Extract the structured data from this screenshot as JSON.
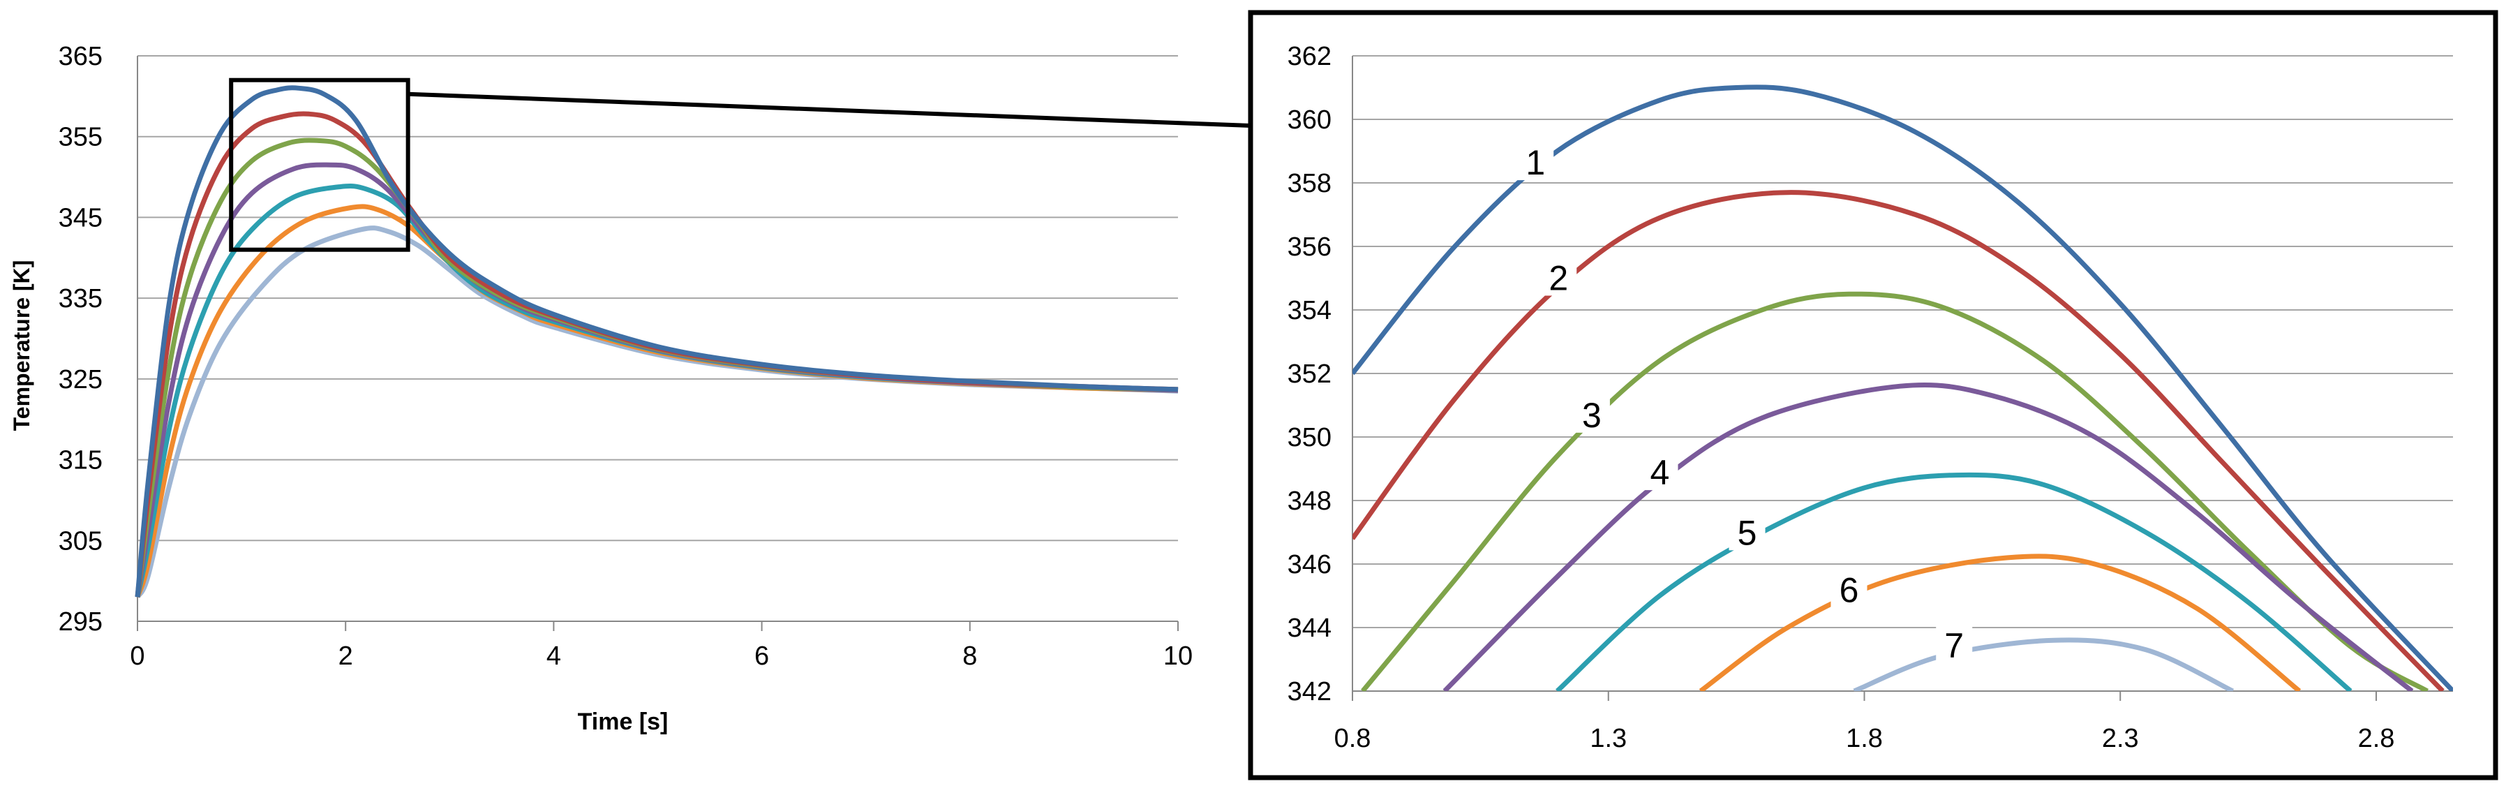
{
  "colors": [
    "#3f6fa5",
    "#b8433f",
    "#7fa44a",
    "#7a5a9a",
    "#2c9fb0",
    "#f08a2e",
    "#9fb6d4"
  ],
  "chart_data": [
    {
      "type": "line",
      "title": "",
      "xlabel": "Time [s]",
      "ylabel": "Temperature [K]",
      "xlim": [
        0,
        10
      ],
      "ylim": [
        295,
        365
      ],
      "xticks": [
        0,
        2,
        4,
        6,
        8,
        10
      ],
      "yticks": [
        295,
        305,
        315,
        325,
        335,
        345,
        355,
        365
      ],
      "grid": "horizontal",
      "legend": "none",
      "zoom_box": {
        "x": [
          0.9,
          2.6
        ],
        "y": [
          341,
          362
        ]
      },
      "series": [
        {
          "x": [
            0,
            0.1,
            0.3,
            0.5,
            0.8,
            1.1,
            1.35,
            1.55,
            1.8,
            2.1,
            2.5,
            3,
            3.5,
            4,
            5,
            6,
            7,
            8,
            9,
            10
          ],
          "y": [
            298,
            312,
            334,
            346,
            355.5,
            359.6,
            360.8,
            361,
            360.2,
            357,
            348,
            340.5,
            336,
            333,
            329,
            326.8,
            325.5,
            324.7,
            324.1,
            323.7
          ]
        },
        {
          "x": [
            0,
            0.1,
            0.3,
            0.5,
            0.8,
            1.1,
            1.4,
            1.65,
            1.9,
            2.2,
            2.6,
            3,
            3.5,
            4,
            5,
            6,
            7,
            8,
            9,
            10
          ],
          "y": [
            298,
            310,
            330,
            342,
            351.5,
            356,
            357.5,
            357.8,
            357,
            354,
            346.5,
            340,
            335.5,
            332.8,
            328.8,
            326.7,
            325.4,
            324.6,
            324.1,
            323.7
          ]
        },
        {
          "x": [
            0,
            0.1,
            0.3,
            0.5,
            0.8,
            1.1,
            1.45,
            1.75,
            2,
            2.3,
            2.7,
            3,
            3.5,
            4,
            5,
            6,
            7,
            8,
            9,
            10
          ],
          "y": [
            298,
            308,
            326,
            337.5,
            347,
            352,
            354.2,
            354.5,
            353.8,
            351,
            344.5,
            339.5,
            335.2,
            332.6,
            328.7,
            326.6,
            325.4,
            324.6,
            324,
            323.7
          ]
        },
        {
          "x": [
            0,
            0.1,
            0.3,
            0.5,
            0.8,
            1.1,
            1.5,
            1.85,
            2.1,
            2.4,
            2.8,
            3.2,
            3.6,
            4,
            5,
            6,
            7,
            8,
            9,
            10
          ],
          "y": [
            298,
            306,
            322,
            333,
            342.5,
            348,
            351,
            351.5,
            351,
            348.5,
            342.5,
            337.5,
            334.4,
            332.4,
            328.6,
            326.5,
            325.3,
            324.5,
            324,
            323.6
          ]
        },
        {
          "x": [
            0,
            0.1,
            0.3,
            0.5,
            0.8,
            1.1,
            1.5,
            1.95,
            2.2,
            2.5,
            2.8,
            3.2,
            3.6,
            4,
            5,
            6,
            7,
            8,
            9,
            10
          ],
          "y": [
            298,
            304,
            318.5,
            328.5,
            338,
            343.5,
            347.5,
            348.8,
            348.5,
            346.5,
            342,
            337,
            334,
            332.1,
            328.5,
            326.4,
            325.2,
            324.5,
            324,
            323.6
          ]
        },
        {
          "x": [
            0,
            0.1,
            0.3,
            0.5,
            0.8,
            1.2,
            1.6,
            2.05,
            2.3,
            2.6,
            2.9,
            3.3,
            3.7,
            4,
            5,
            6,
            7,
            8,
            9,
            10
          ],
          "y": [
            298,
            302,
            315,
            324.5,
            333.5,
            340.5,
            344.5,
            346.2,
            346,
            344,
            340.5,
            336,
            333.3,
            331.8,
            328.3,
            326.3,
            325.1,
            324.4,
            323.9,
            323.6
          ]
        },
        {
          "x": [
            0,
            0.1,
            0.3,
            0.5,
            0.8,
            1.2,
            1.6,
            2.15,
            2.4,
            2.7,
            3,
            3.3,
            3.7,
            4,
            5,
            6,
            7,
            8,
            9,
            10
          ],
          "y": [
            298,
            300.5,
            311.5,
            320.5,
            329.5,
            336.5,
            341,
            343.5,
            343.3,
            341.5,
            338.5,
            335.5,
            332.8,
            331.4,
            328,
            326.1,
            325,
            324.3,
            323.9,
            323.5
          ]
        }
      ]
    },
    {
      "type": "line",
      "title": "",
      "xlim": [
        0.8,
        2.95
      ],
      "ylim": [
        342,
        362
      ],
      "xticks": [
        "0.8",
        "1.3",
        "1.8",
        "2.3",
        "2.8"
      ],
      "yticks": [
        342,
        344,
        346,
        348,
        350,
        352,
        354,
        356,
        358,
        360,
        362
      ],
      "grid": "horizontal",
      "legend": "none",
      "series": [
        {
          "name": "1",
          "peak_x": 1.55,
          "peak_y": 361.0,
          "x": [
            0.8,
            1.0,
            1.2,
            1.4,
            1.55,
            1.7,
            1.9,
            2.1,
            2.3,
            2.5,
            2.7,
            2.95
          ],
          "y": [
            352.0,
            356.0,
            359.0,
            360.6,
            361.0,
            360.8,
            359.6,
            357.4,
            354.2,
            350.3,
            346.3,
            342.0
          ]
        },
        {
          "name": "2",
          "peak_x": 1.65,
          "peak_y": 357.7,
          "x": [
            0.8,
            1.0,
            1.2,
            1.4,
            1.65,
            1.9,
            2.1,
            2.3,
            2.5,
            2.7,
            2.93
          ],
          "y": [
            346.8,
            351.2,
            354.7,
            356.9,
            357.7,
            357.0,
            355.3,
            352.6,
            349.2,
            345.8,
            342.0
          ]
        },
        {
          "name": "3",
          "peak_x": 1.77,
          "peak_y": 354.5,
          "x": [
            0.82,
            1.0,
            1.2,
            1.4,
            1.6,
            1.77,
            1.95,
            2.15,
            2.35,
            2.55,
            2.75,
            2.9
          ],
          "y": [
            342.0,
            345.5,
            349.4,
            352.4,
            354.0,
            354.5,
            354.1,
            352.4,
            349.6,
            346.4,
            343.4,
            342.0
          ]
        },
        {
          "name": "4",
          "peak_x": 1.87,
          "peak_y": 351.6,
          "x": [
            0.98,
            1.2,
            1.4,
            1.6,
            1.87,
            2.05,
            2.25,
            2.45,
            2.65,
            2.87
          ],
          "y": [
            342.0,
            345.6,
            348.6,
            350.6,
            351.6,
            351.3,
            350.0,
            347.6,
            344.8,
            342.0
          ]
        },
        {
          "name": "5",
          "peak_x": 1.98,
          "peak_y": 348.8,
          "x": [
            1.2,
            1.4,
            1.6,
            1.8,
            1.98,
            2.15,
            2.35,
            2.55,
            2.75
          ],
          "y": [
            342.0,
            345.0,
            347.0,
            348.4,
            348.8,
            348.5,
            347.0,
            344.8,
            342.0
          ]
        },
        {
          "name": "6",
          "peak_x": 2.08,
          "peak_y": 346.2,
          "x": [
            1.48,
            1.65,
            1.85,
            2.08,
            2.25,
            2.45,
            2.65
          ],
          "y": [
            342.0,
            344.0,
            345.5,
            346.2,
            346.0,
            344.6,
            342.0
          ]
        },
        {
          "name": "7",
          "peak_x": 2.17,
          "peak_y": 343.6,
          "x": [
            1.78,
            1.95,
            2.17,
            2.35,
            2.52
          ],
          "y": [
            342.0,
            343.1,
            343.6,
            343.3,
            342.0
          ]
        }
      ]
    }
  ]
}
